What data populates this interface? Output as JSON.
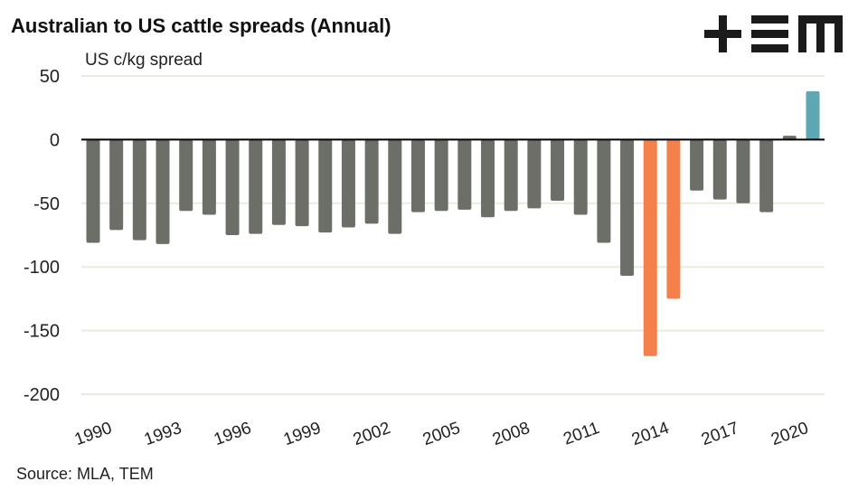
{
  "chart_data": {
    "type": "bar",
    "title": "Australian to US cattle spreads (Annual)",
    "ylabel": "US c/kg spread",
    "xlabel": "",
    "source": "Source: MLA, TEM",
    "logo_text": "TEM",
    "ylim": [
      -200,
      50
    ],
    "yticks": [
      50,
      0,
      -50,
      -100,
      -150,
      -200
    ],
    "xtick_labels": [
      "1990",
      "1993",
      "1996",
      "1999",
      "2002",
      "2005",
      "2008",
      "2011",
      "2014",
      "2017",
      "2020"
    ],
    "grid": true,
    "categories": [
      "1990",
      "1991",
      "1992",
      "1993",
      "1994",
      "1995",
      "1996",
      "1997",
      "1998",
      "1999",
      "2000",
      "2001",
      "2002",
      "2003",
      "2004",
      "2005",
      "2006",
      "2007",
      "2008",
      "2009",
      "2010",
      "2011",
      "2012",
      "2013",
      "2014",
      "2015",
      "2016",
      "2017",
      "2018",
      "2019",
      "2020",
      "2021"
    ],
    "values": [
      -81,
      -71,
      -79,
      -82,
      -56,
      -59,
      -75,
      -74,
      -67,
      -68,
      -73,
      -69,
      -66,
      -74,
      -57,
      -56,
      -55,
      -61,
      -56,
      -54,
      -48,
      -59,
      -81,
      -107,
      -170,
      -125,
      -40,
      -47,
      -50,
      -57,
      3,
      38
    ],
    "colors": {
      "default": "#6b6f67",
      "highlight": "#f4814b",
      "latest": "#5ea8b4",
      "grid": "#e9ebe0",
      "axis": "#000000"
    },
    "highlight_years": [
      "2014",
      "2015"
    ],
    "latest_years": [
      "2021"
    ]
  }
}
